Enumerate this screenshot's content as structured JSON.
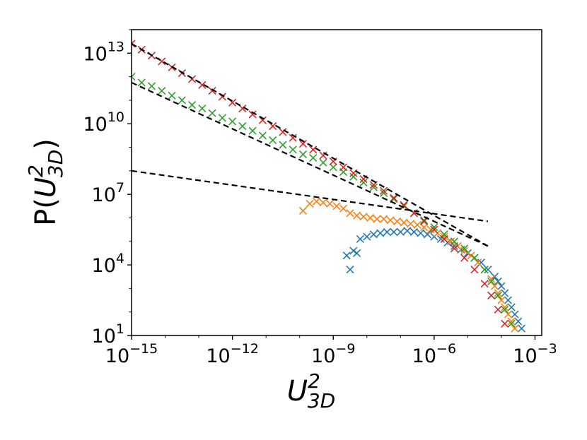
{
  "chart_data": {
    "type": "scatter",
    "title": "",
    "xscale": "log",
    "yscale": "log",
    "xlim_exp": [
      -15,
      -2.8
    ],
    "ylim_exp": [
      1,
      14
    ],
    "x_ticks": [
      {
        "base": "10",
        "exp": "−15",
        "value": -15
      },
      {
        "base": "10",
        "exp": "−12",
        "value": -12
      },
      {
        "base": "10",
        "exp": "−9",
        "value": -9
      },
      {
        "base": "10",
        "exp": "−6",
        "value": -6
      },
      {
        "base": "10",
        "exp": "−3",
        "value": -3
      }
    ],
    "y_ticks": [
      {
        "base": "10",
        "exp": "1",
        "value": 1
      },
      {
        "base": "10",
        "exp": "4",
        "value": 4
      },
      {
        "base": "10",
        "exp": "7",
        "value": 7
      },
      {
        "base": "10",
        "exp": "10",
        "value": 10
      },
      {
        "base": "10",
        "exp": "13",
        "value": 13
      }
    ],
    "xlabel": {
      "main": "U",
      "sup": "2",
      "sub": "3D"
    },
    "ylabel": {
      "pre": "P(",
      "main": "U",
      "sup": "2",
      "sub": "3D",
      "post": ")"
    },
    "series": [
      {
        "name": "blue",
        "color": "#1f77b4",
        "log_x": [
          -8.6,
          -8.5,
          -8.4,
          -8.3,
          -8.2,
          -8.0,
          -7.8,
          -7.6,
          -7.4,
          -7.2,
          -7.0,
          -6.8,
          -6.6,
          -6.4,
          -6.2,
          -6.0,
          -5.8,
          -5.6,
          -5.4,
          -5.2,
          -5.0,
          -4.8,
          -4.6,
          -4.4,
          -4.2,
          -4.1,
          -4.0,
          -3.9,
          -3.8,
          -3.7,
          -3.6,
          -3.5,
          -3.4
        ],
        "log_y": [
          4.4,
          3.8,
          4.6,
          4.5,
          5.1,
          5.2,
          5.3,
          5.35,
          5.4,
          5.4,
          5.4,
          5.45,
          5.4,
          5.35,
          5.3,
          5.2,
          5.1,
          4.95,
          4.8,
          4.65,
          4.5,
          4.3,
          4.1,
          3.8,
          3.5,
          3.3,
          3.1,
          2.8,
          2.5,
          2.2,
          1.9,
          1.6,
          1.3
        ]
      },
      {
        "name": "orange",
        "color": "#ff7f0e",
        "log_x": [
          -9.9,
          -9.7,
          -9.5,
          -9.3,
          -9.1,
          -8.9,
          -8.7,
          -8.5,
          -8.3,
          -8.1,
          -7.9,
          -7.7,
          -7.5,
          -7.3,
          -7.1,
          -6.9,
          -6.7,
          -6.5,
          -6.3,
          -6.1,
          -5.9,
          -5.7,
          -5.5,
          -5.3,
          -5.1,
          -4.9,
          -4.7,
          -4.5,
          -4.3,
          -4.2,
          -4.1,
          -4.0,
          -3.9,
          -3.8,
          -3.7,
          -3.6
        ],
        "log_y": [
          6.3,
          6.6,
          6.7,
          6.65,
          6.6,
          6.5,
          6.4,
          6.2,
          6.1,
          6.05,
          6.0,
          5.95,
          5.95,
          5.9,
          5.85,
          5.8,
          5.75,
          5.7,
          5.6,
          5.5,
          5.35,
          5.2,
          5.0,
          4.8,
          4.6,
          4.4,
          4.1,
          3.8,
          3.4,
          3.1,
          2.8,
          2.5,
          2.2,
          1.9,
          1.6,
          1.3
        ]
      },
      {
        "name": "green",
        "color": "#2ca02c",
        "log_x": [
          -15.0,
          -14.7,
          -14.4,
          -14.1,
          -13.8,
          -13.5,
          -13.2,
          -12.9,
          -12.6,
          -12.3,
          -12.0,
          -11.7,
          -11.4,
          -11.1,
          -10.8,
          -10.5,
          -10.2,
          -9.9,
          -9.6,
          -9.3,
          -9.0,
          -8.7,
          -8.4,
          -8.1,
          -7.8,
          -7.5,
          -7.2,
          -6.9,
          -6.6,
          -6.3,
          -6.0,
          -5.7,
          -5.4,
          -5.1,
          -4.8,
          -4.5,
          -4.3,
          -4.1,
          -3.9,
          -3.7
        ],
        "log_y": [
          12.0,
          11.75,
          11.6,
          11.4,
          11.2,
          11.0,
          10.8,
          10.65,
          10.45,
          10.25,
          10.1,
          9.9,
          9.7,
          9.5,
          9.3,
          9.1,
          8.9,
          8.7,
          8.55,
          8.35,
          8.15,
          7.95,
          7.75,
          7.5,
          7.3,
          7.05,
          6.8,
          6.5,
          6.2,
          5.9,
          5.6,
          5.3,
          5.0,
          4.7,
          4.3,
          3.8,
          3.3,
          2.7,
          2.1,
          1.5
        ]
      },
      {
        "name": "red",
        "color": "#d62728",
        "log_x": [
          -15.0,
          -14.7,
          -14.4,
          -14.1,
          -13.8,
          -13.5,
          -13.2,
          -12.9,
          -12.6,
          -12.3,
          -12.0,
          -11.7,
          -11.4,
          -11.1,
          -10.8,
          -10.5,
          -10.2,
          -9.9,
          -9.6,
          -9.3,
          -9.0,
          -8.7,
          -8.4,
          -8.1,
          -7.8,
          -7.5,
          -7.2,
          -6.9,
          -6.6,
          -6.3,
          -6.0,
          -5.7,
          -5.4,
          -5.1,
          -4.8,
          -4.5,
          -4.3,
          -4.1,
          -3.9
        ],
        "log_y": [
          13.4,
          13.15,
          12.9,
          12.65,
          12.4,
          12.15,
          11.9,
          11.65,
          11.4,
          11.15,
          10.9,
          10.65,
          10.4,
          10.15,
          9.9,
          9.65,
          9.4,
          9.15,
          8.9,
          8.65,
          8.4,
          8.15,
          7.9,
          7.65,
          7.4,
          7.15,
          6.85,
          6.55,
          6.2,
          5.85,
          5.5,
          5.1,
          4.7,
          4.3,
          3.8,
          3.2,
          2.7,
          2.1,
          1.5
        ]
      }
    ],
    "fit_lines": [
      {
        "name": "fit-orange",
        "log_x": [
          -15.0,
          -4.4
        ],
        "log_y": [
          8.0,
          5.85
        ]
      },
      {
        "name": "fit-green",
        "log_x": [
          -15.0,
          -4.4
        ],
        "log_y": [
          11.75,
          4.8
        ]
      },
      {
        "name": "fit-red",
        "log_x": [
          -15.0,
          -4.4
        ],
        "log_y": [
          13.4,
          4.8
        ]
      }
    ]
  }
}
